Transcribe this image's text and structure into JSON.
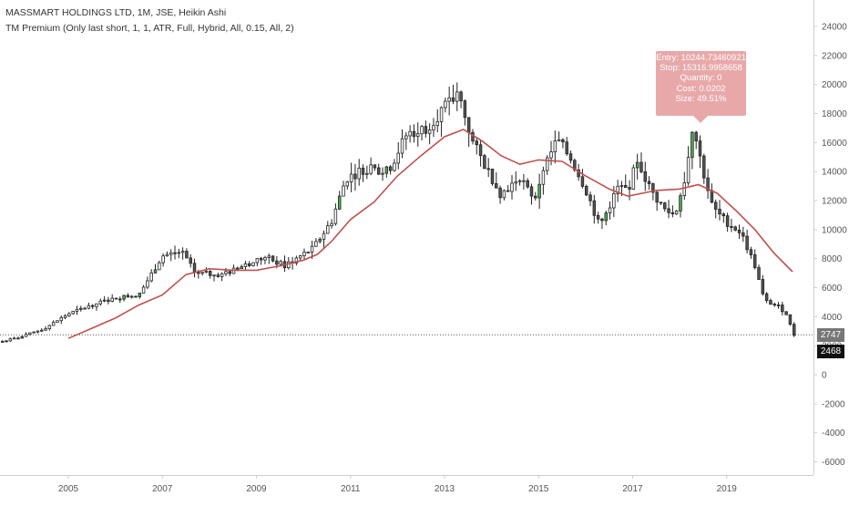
{
  "legend": {
    "symbol": "MASSMART HOLDINGS LTD, 1M, JSE, Heikin Ashi",
    "indicator": "TM Premium (Only last short, 1, 1, ATR, Full, Hybrid, All, 0.15, All, 2)"
  },
  "tooltip": {
    "entry": "Entry: 10244.73460921",
    "stop": "Stop: 15316.9958658",
    "quantity": "Quantity: 0",
    "cost": "Cost: 0.0202",
    "size": "Size: 49.51%"
  },
  "price_labels": {
    "last": "2747",
    "low": "2468"
  },
  "colors": {
    "candle_up_body": "#ffffff",
    "candle_down_body": "#555555",
    "candle_signal_body": "#4caf50",
    "candle_outline": "#222222",
    "moving_average": "#c0504d",
    "tooltip_bg": "#e8a8aa"
  },
  "chart_data": {
    "type": "candlestick",
    "title": "MASSMART HOLDINGS LTD, 1M, JSE, Heikin Ashi",
    "xlabel": "",
    "ylabel": "",
    "x_ticks": [
      "2005",
      "2007",
      "2009",
      "2011",
      "2013",
      "2015",
      "2017",
      "2019"
    ],
    "y_ticks": [
      -6000,
      -4000,
      -2000,
      0,
      2000,
      4000,
      6000,
      8000,
      10000,
      12000,
      14000,
      16000,
      18000,
      20000,
      22000,
      24000
    ],
    "ylim": [
      -7000,
      25000
    ],
    "xlim": [
      2003.6,
      2020.9
    ],
    "grid": false,
    "last_price": 2747,
    "low_price": 2468,
    "price_anchors": [
      [
        2003.6,
        2300
      ],
      [
        2004.0,
        2600
      ],
      [
        2004.5,
        3200
      ],
      [
        2005.0,
        4200
      ],
      [
        2005.5,
        4800
      ],
      [
        2006.0,
        5300
      ],
      [
        2006.5,
        5500
      ],
      [
        2007.0,
        8200
      ],
      [
        2007.4,
        8500
      ],
      [
        2007.7,
        7000
      ],
      [
        2008.3,
        6900
      ],
      [
        2008.8,
        7600
      ],
      [
        2009.2,
        8100
      ],
      [
        2009.6,
        7500
      ],
      [
        2010.2,
        8700
      ],
      [
        2010.6,
        10600
      ],
      [
        2010.9,
        13500
      ],
      [
        2011.3,
        14200
      ],
      [
        2011.8,
        14000
      ],
      [
        2012.2,
        16600
      ],
      [
        2012.6,
        17000
      ],
      [
        2013.0,
        18400
      ],
      [
        2013.3,
        19300
      ],
      [
        2013.6,
        16000
      ],
      [
        2013.9,
        14200
      ],
      [
        2014.2,
        12400
      ],
      [
        2014.6,
        13700
      ],
      [
        2014.9,
        11900
      ],
      [
        2015.1,
        14200
      ],
      [
        2015.4,
        16200
      ],
      [
        2015.7,
        14800
      ],
      [
        2016.0,
        12800
      ],
      [
        2016.3,
        10200
      ],
      [
        2016.7,
        13000
      ],
      [
        2016.9,
        12700
      ],
      [
        2017.1,
        14800
      ],
      [
        2017.4,
        12600
      ],
      [
        2017.7,
        11300
      ],
      [
        2017.9,
        11000
      ],
      [
        2018.1,
        13400
      ],
      [
        2018.3,
        16900
      ],
      [
        2018.5,
        14000
      ],
      [
        2018.7,
        11500
      ],
      [
        2019.0,
        10500
      ],
      [
        2019.3,
        9800
      ],
      [
        2019.6,
        7500
      ],
      [
        2019.8,
        5100
      ],
      [
        2020.1,
        4700
      ],
      [
        2020.3,
        4100
      ],
      [
        2020.4,
        2747
      ]
    ],
    "series": [
      {
        "name": "",
        "type": "line",
        "points": [
          [
            2005.0,
            2500
          ],
          [
            2005.5,
            3200
          ],
          [
            2006.0,
            3900
          ],
          [
            2006.5,
            4800
          ],
          [
            2007.0,
            5500
          ],
          [
            2007.5,
            6900
          ],
          [
            2008.0,
            7300
          ],
          [
            2008.5,
            7200
          ],
          [
            2009.0,
            7200
          ],
          [
            2009.5,
            7500
          ],
          [
            2010.0,
            7900
          ],
          [
            2010.3,
            8300
          ],
          [
            2010.6,
            9200
          ],
          [
            2011.0,
            10700
          ],
          [
            2011.5,
            11900
          ],
          [
            2012.0,
            13700
          ],
          [
            2012.5,
            15100
          ],
          [
            2013.0,
            16400
          ],
          [
            2013.4,
            16900
          ],
          [
            2013.8,
            16100
          ],
          [
            2014.2,
            15100
          ],
          [
            2014.6,
            14500
          ],
          [
            2015.0,
            14800
          ],
          [
            2015.5,
            14700
          ],
          [
            2016.0,
            13700
          ],
          [
            2016.5,
            12800
          ],
          [
            2016.9,
            12300
          ],
          [
            2017.5,
            12700
          ],
          [
            2018.0,
            12800
          ],
          [
            2018.4,
            13100
          ],
          [
            2018.8,
            12500
          ],
          [
            2019.2,
            11300
          ],
          [
            2019.6,
            10000
          ],
          [
            2020.0,
            8400
          ],
          [
            2020.4,
            7100
          ]
        ]
      }
    ]
  }
}
